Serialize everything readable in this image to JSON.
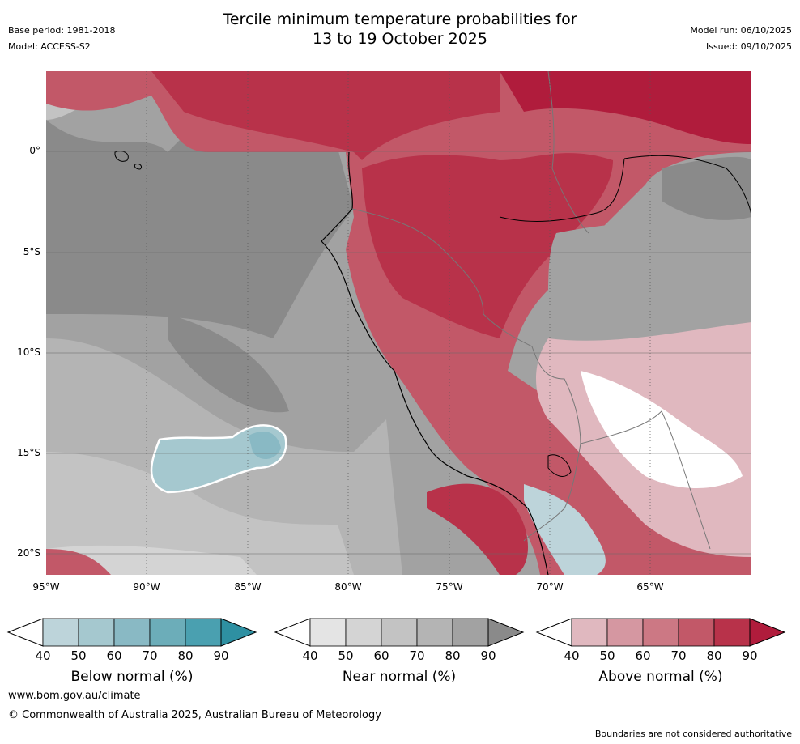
{
  "title": {
    "line1": "Tercile minimum temperature probabilities for",
    "line2": "13 to 19 October 2025"
  },
  "meta": {
    "base_period": "Base period: 1981-2018",
    "model": "Model: ACCESS-S2",
    "model_run": "Model run: 06/10/2025",
    "issued": "Issued: 09/10/2025"
  },
  "axes": {
    "lat_labels": [
      "0°",
      "5°S",
      "10°S",
      "15°S",
      "20°S"
    ],
    "lon_labels": [
      "95°W",
      "90°W",
      "85°W",
      "80°W",
      "75°W",
      "70°W",
      "65°W"
    ]
  },
  "legend": {
    "below": {
      "title": "Below normal (%)",
      "ticks": [
        "40",
        "50",
        "60",
        "70",
        "80",
        "90"
      ],
      "colors": [
        "#bdd4da",
        "#a5c8cf",
        "#89b9c4",
        "#6cadb9",
        "#4aa0b0",
        "#2e90a2"
      ]
    },
    "near": {
      "title": "Near normal (%)",
      "ticks": [
        "40",
        "50",
        "60",
        "70",
        "80",
        "90"
      ],
      "colors": [
        "#e4e4e4",
        "#d4d4d4",
        "#c3c3c3",
        "#b4b4b4",
        "#a2a2a2",
        "#8a8a8a"
      ]
    },
    "above": {
      "title": "Above normal (%)",
      "ticks": [
        "40",
        "50",
        "60",
        "70",
        "80",
        "90"
      ],
      "colors": [
        "#e0b8bf",
        "#d597a1",
        "#cc7884",
        "#c25868",
        "#b8324a",
        "#b01c3c"
      ]
    }
  },
  "footer": {
    "url": "www.bom.gov.au/climate",
    "copyright": "© Commonwealth of Australia 2025, Australian Bureau of Meteorology",
    "note": "Boundaries are not considered authoritative"
  }
}
